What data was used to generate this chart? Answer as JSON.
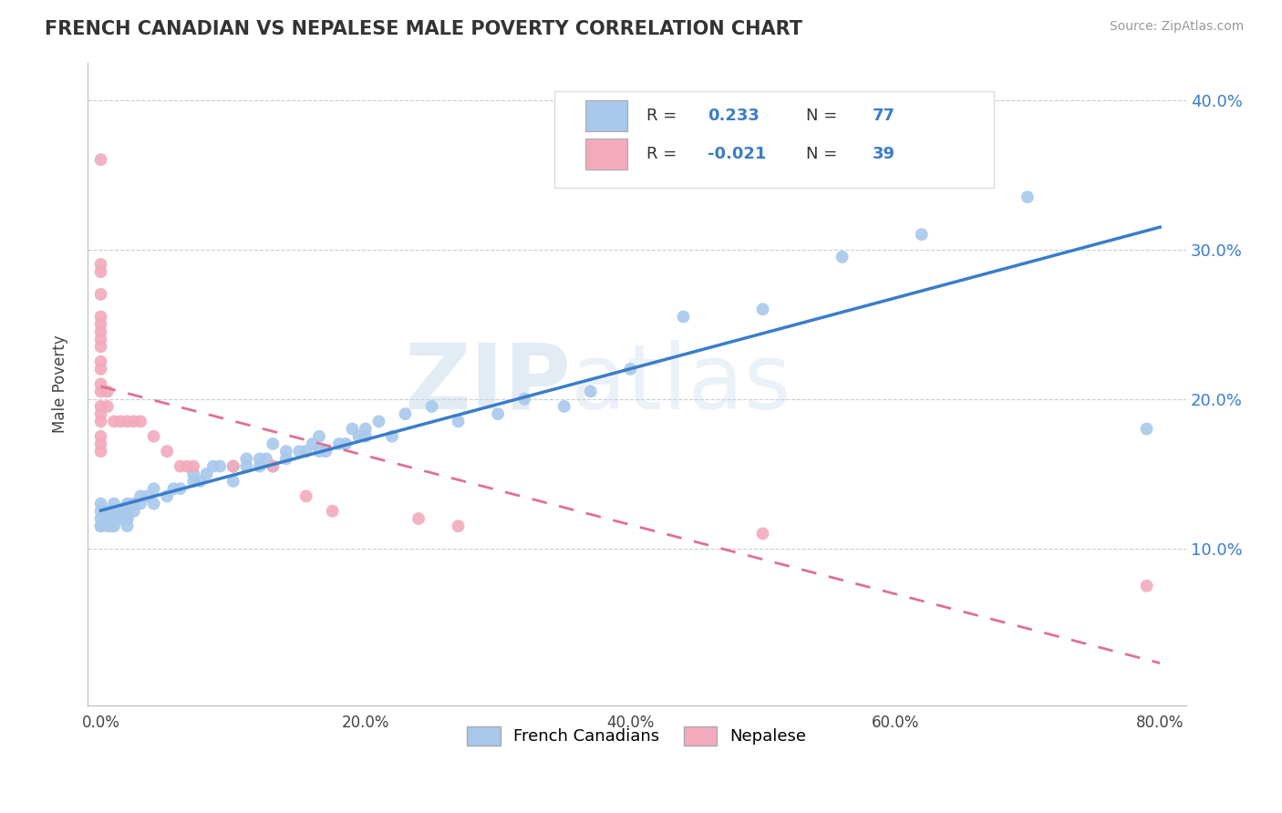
{
  "title": "FRENCH CANADIAN VS NEPALESE MALE POVERTY CORRELATION CHART",
  "source": "Source: ZipAtlas.com",
  "ylabel": "Male Poverty",
  "xlim": [
    -0.01,
    0.82
  ],
  "ylim": [
    -0.005,
    0.425
  ],
  "yticks": [
    0.1,
    0.2,
    0.3,
    0.4
  ],
  "xticks": [
    0.0,
    0.2,
    0.4,
    0.6,
    0.8
  ],
  "xtick_labels": [
    "0.0%",
    "20.0%",
    "40.0%",
    "60.0%",
    "80.0%"
  ],
  "ytick_labels": [
    "10.0%",
    "20.0%",
    "30.0%",
    "40.0%"
  ],
  "french_R": 0.233,
  "french_N": 77,
  "nepalese_R": -0.021,
  "nepalese_N": 39,
  "blue_color": "#A8C8EC",
  "pink_color": "#F2AABC",
  "blue_line_color": "#3A7DC9",
  "pink_line_color": "#E07090",
  "legend_color": "#3A7DC9",
  "watermark_zip": "ZIP",
  "watermark_atlas": "atlas",
  "french_x": [
    0.0,
    0.0,
    0.0,
    0.0,
    0.0,
    0.005,
    0.005,
    0.005,
    0.008,
    0.01,
    0.01,
    0.01,
    0.01,
    0.01,
    0.015,
    0.015,
    0.018,
    0.02,
    0.02,
    0.02,
    0.02,
    0.02,
    0.025,
    0.025,
    0.03,
    0.03,
    0.035,
    0.04,
    0.04,
    0.05,
    0.055,
    0.06,
    0.07,
    0.07,
    0.075,
    0.08,
    0.085,
    0.09,
    0.1,
    0.1,
    0.11,
    0.11,
    0.12,
    0.12,
    0.125,
    0.13,
    0.13,
    0.14,
    0.14,
    0.15,
    0.155,
    0.16,
    0.165,
    0.165,
    0.17,
    0.18,
    0.185,
    0.19,
    0.195,
    0.2,
    0.2,
    0.21,
    0.22,
    0.23,
    0.25,
    0.27,
    0.3,
    0.32,
    0.35,
    0.37,
    0.4,
    0.44,
    0.5,
    0.56,
    0.62,
    0.7,
    0.79
  ],
  "french_y": [
    0.115,
    0.115,
    0.12,
    0.125,
    0.13,
    0.115,
    0.12,
    0.125,
    0.115,
    0.115,
    0.12,
    0.12,
    0.125,
    0.13,
    0.12,
    0.125,
    0.12,
    0.115,
    0.12,
    0.12,
    0.125,
    0.13,
    0.125,
    0.13,
    0.13,
    0.135,
    0.135,
    0.13,
    0.14,
    0.135,
    0.14,
    0.14,
    0.145,
    0.15,
    0.145,
    0.15,
    0.155,
    0.155,
    0.145,
    0.155,
    0.155,
    0.16,
    0.155,
    0.16,
    0.16,
    0.155,
    0.17,
    0.16,
    0.165,
    0.165,
    0.165,
    0.17,
    0.165,
    0.175,
    0.165,
    0.17,
    0.17,
    0.18,
    0.175,
    0.18,
    0.175,
    0.185,
    0.175,
    0.19,
    0.195,
    0.185,
    0.19,
    0.2,
    0.195,
    0.205,
    0.22,
    0.255,
    0.26,
    0.295,
    0.31,
    0.335,
    0.18
  ],
  "nepalese_x": [
    0.0,
    0.0,
    0.0,
    0.0,
    0.0,
    0.0,
    0.0,
    0.0,
    0.0,
    0.0,
    0.0,
    0.0,
    0.0,
    0.0,
    0.0,
    0.0,
    0.0,
    0.0,
    0.0,
    0.005,
    0.005,
    0.01,
    0.015,
    0.02,
    0.025,
    0.03,
    0.04,
    0.05,
    0.06,
    0.065,
    0.07,
    0.1,
    0.13,
    0.155,
    0.175,
    0.24,
    0.27,
    0.5,
    0.79
  ],
  "nepalese_y": [
    0.36,
    0.29,
    0.285,
    0.27,
    0.255,
    0.25,
    0.245,
    0.24,
    0.235,
    0.225,
    0.22,
    0.21,
    0.205,
    0.195,
    0.19,
    0.185,
    0.175,
    0.17,
    0.165,
    0.205,
    0.195,
    0.185,
    0.185,
    0.185,
    0.185,
    0.185,
    0.175,
    0.165,
    0.155,
    0.155,
    0.155,
    0.155,
    0.155,
    0.135,
    0.125,
    0.12,
    0.115,
    0.11,
    0.075
  ]
}
